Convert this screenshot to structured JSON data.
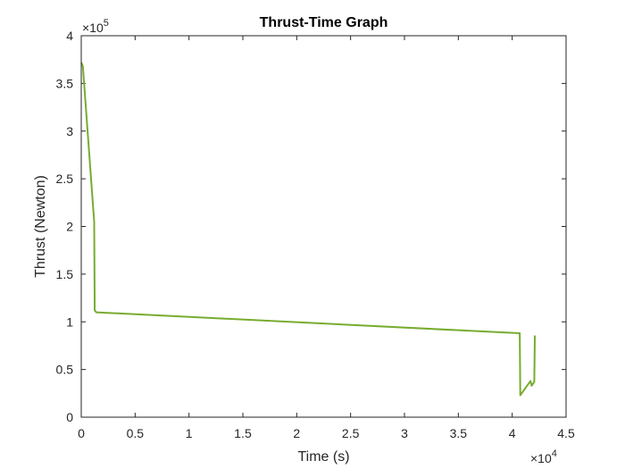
{
  "chart_data": {
    "type": "line",
    "title": "Thrust-Time Graph",
    "xlabel": "Time (s)",
    "ylabel": "Thrust (Newton)",
    "x_multiplier": "×10",
    "x_exponent": "4",
    "y_multiplier": "×10",
    "y_exponent": "5",
    "xlim": [
      0,
      45000
    ],
    "ylim": [
      0,
      400000
    ],
    "xticks": [
      0,
      5000,
      10000,
      15000,
      20000,
      25000,
      30000,
      35000,
      40000,
      45000
    ],
    "xtick_labels": [
      "0",
      "0.5",
      "1",
      "1.5",
      "2",
      "2.5",
      "3",
      "3.5",
      "4",
      "4.5"
    ],
    "yticks": [
      0,
      50000,
      100000,
      150000,
      200000,
      250000,
      300000,
      350000,
      400000
    ],
    "ytick_labels": [
      "0",
      "0.5",
      "1",
      "1.5",
      "2",
      "2.5",
      "3",
      "3.5",
      "4"
    ],
    "grid": false,
    "line_color": "#77ac30",
    "series": [
      {
        "x": [
          0,
          150,
          1200,
          1250,
          1400,
          40700,
          40750,
          41700,
          41800,
          42050,
          42100,
          42150
        ],
        "y": [
          372000,
          368000,
          205000,
          112000,
          110000,
          88000,
          23000,
          38000,
          33000,
          37000,
          85000,
          85000
        ]
      }
    ]
  }
}
